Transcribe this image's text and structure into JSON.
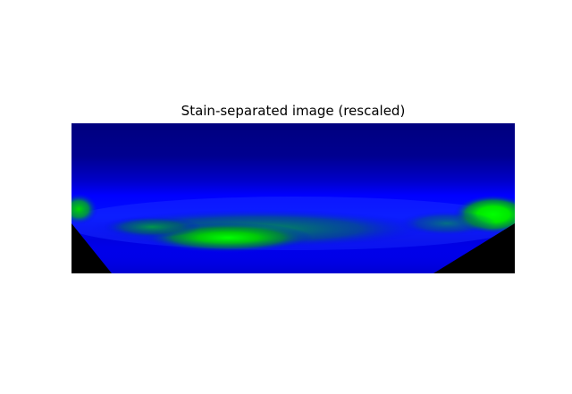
{
  "figure": {
    "title": "Stain-separated image (rescaled)",
    "colors": {
      "background": "#ffffff",
      "deep_blue": "#000080",
      "blue": "#0000ff",
      "green": "#00ff00",
      "corner_black": "#000000"
    }
  }
}
